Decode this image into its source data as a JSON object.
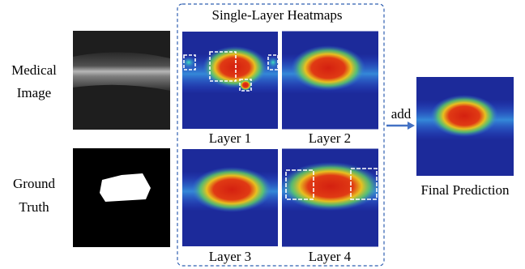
{
  "rows": [
    {
      "label": [
        "Medical",
        "Image"
      ]
    },
    {
      "label": [
        "Ground",
        "Truth"
      ]
    }
  ],
  "panel": {
    "title": "Single-Layer Heatmaps",
    "layers": [
      "Layer 1",
      "Layer 2",
      "Layer 3",
      "Layer 4"
    ]
  },
  "arrow_label": "add",
  "output": {
    "label": "Final Prediction"
  }
}
